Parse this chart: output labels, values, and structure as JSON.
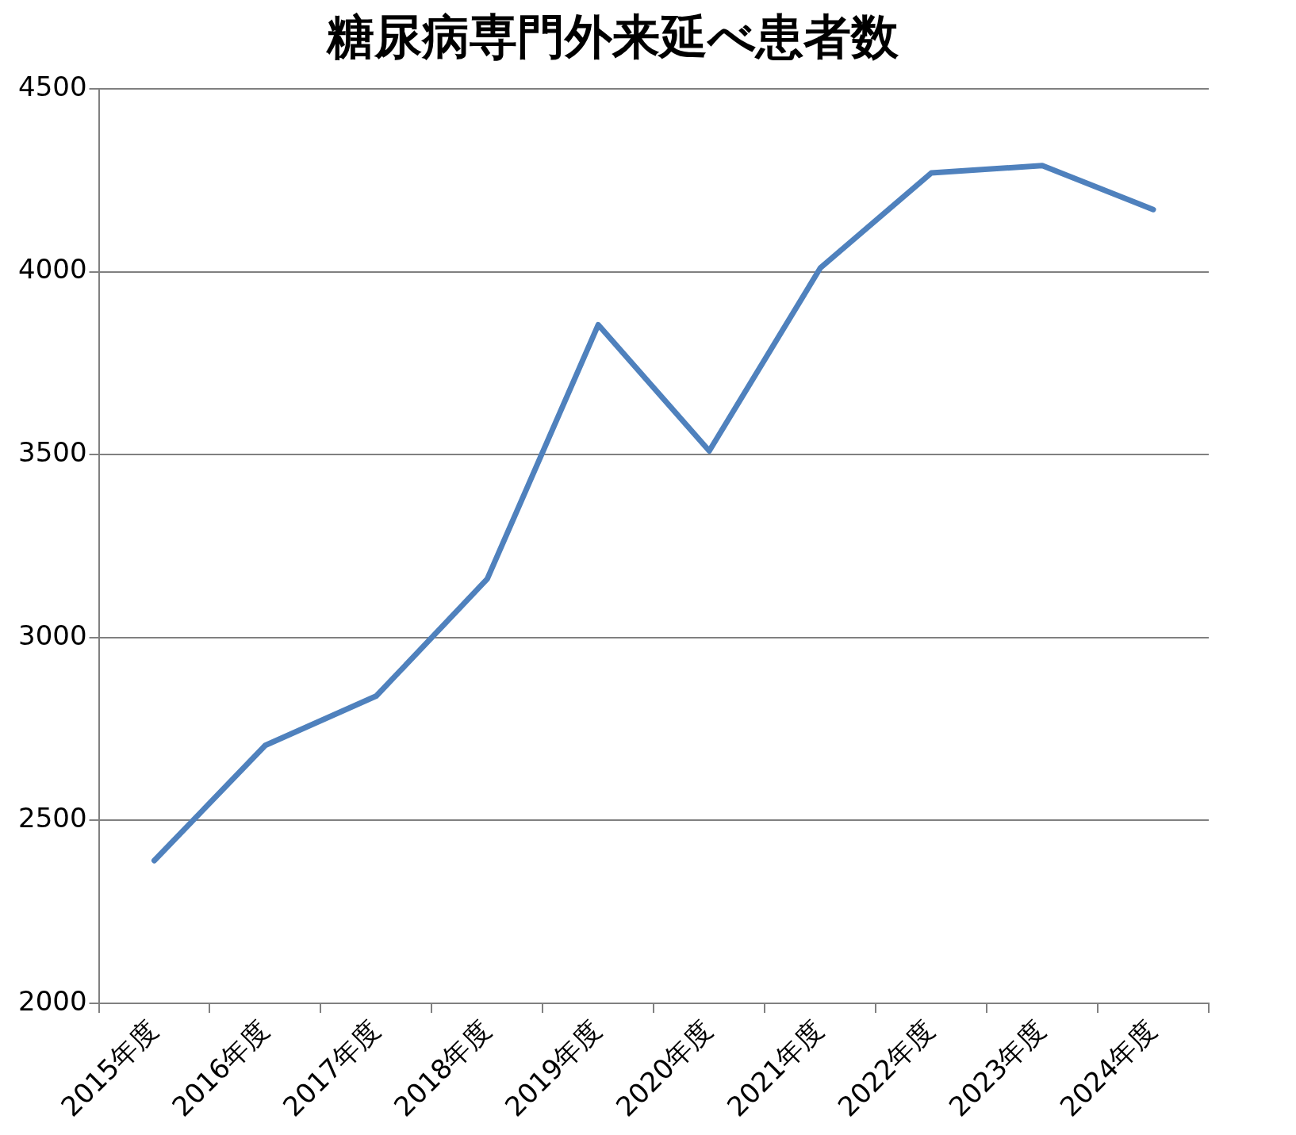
{
  "chart_data": {
    "type": "line",
    "title": "糖尿病専門外来延べ患者数",
    "categories": [
      "2015年度",
      "2016年度",
      "2017年度",
      "2018年度",
      "2019年度",
      "2020年度",
      "2021年度",
      "2022年度",
      "2023年度",
      "2024年度"
    ],
    "series": [
      {
        "color": "#4f81bd",
        "values": [
          2390,
          2705,
          2840,
          3160,
          3855,
          3510,
          4010,
          4270,
          4290,
          4170
        ]
      }
    ],
    "ylim": [
      2000,
      4500
    ],
    "yticks": [
      2000,
      2500,
      3000,
      3500,
      4000,
      4500
    ],
    "grid": "y",
    "marker": "none",
    "line_style": "solid"
  }
}
